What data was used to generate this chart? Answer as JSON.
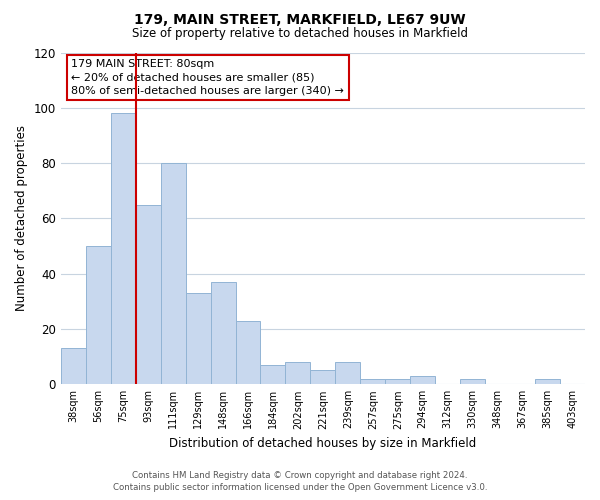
{
  "title": "179, MAIN STREET, MARKFIELD, LE67 9UW",
  "subtitle": "Size of property relative to detached houses in Markfield",
  "xlabel": "Distribution of detached houses by size in Markfield",
  "ylabel": "Number of detached properties",
  "bar_labels": [
    "38sqm",
    "56sqm",
    "75sqm",
    "93sqm",
    "111sqm",
    "129sqm",
    "148sqm",
    "166sqm",
    "184sqm",
    "202sqm",
    "221sqm",
    "239sqm",
    "257sqm",
    "275sqm",
    "294sqm",
    "312sqm",
    "330sqm",
    "348sqm",
    "367sqm",
    "385sqm",
    "403sqm"
  ],
  "bar_heights": [
    13,
    50,
    98,
    65,
    80,
    33,
    37,
    23,
    7,
    8,
    5,
    8,
    2,
    2,
    3,
    0,
    2,
    0,
    0,
    2,
    0
  ],
  "bar_color": "#c8d8ee",
  "bar_edge_color": "#92b4d4",
  "vline_color": "#cc0000",
  "vline_x_index": 2,
  "ylim": [
    0,
    120
  ],
  "yticks": [
    0,
    20,
    40,
    60,
    80,
    100,
    120
  ],
  "annotation_title": "179 MAIN STREET: 80sqm",
  "annotation_line1": "← 20% of detached houses are smaller (85)",
  "annotation_line2": "80% of semi-detached houses are larger (340) →",
  "annotation_box_color": "#ffffff",
  "annotation_box_edge": "#cc0000",
  "footer_line1": "Contains HM Land Registry data © Crown copyright and database right 2024.",
  "footer_line2": "Contains public sector information licensed under the Open Government Licence v3.0.",
  "background_color": "#ffffff",
  "grid_color": "#c8d4e0"
}
